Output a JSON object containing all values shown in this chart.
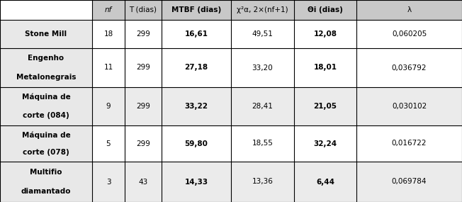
{
  "headers": [
    "nf",
    "T (dias)",
    "MTBF (dias)",
    "χ²α, 2×(nf+1)",
    "Θi (dias)",
    "λ"
  ],
  "rows": [
    {
      "label_lines": [
        "Stone Mill"
      ],
      "nf": "18",
      "T": "299",
      "MTBF": "16,61",
      "chi2": "49,51",
      "theta": "12,08",
      "lambda": "0,060205"
    },
    {
      "label_lines": [
        "Engenho",
        "Metalonegrais"
      ],
      "nf": "11",
      "T": "299",
      "MTBF": "27,18",
      "chi2": "33,20",
      "theta": "18,01",
      "lambda": "0,036792"
    },
    {
      "label_lines": [
        "Máquina de",
        "corte (084)"
      ],
      "nf": "9",
      "T": "299",
      "MTBF": "33,22",
      "chi2": "28,41",
      "theta": "21,05",
      "lambda": "0,030102"
    },
    {
      "label_lines": [
        "Máquina de",
        "corte (078)"
      ],
      "nf": "5",
      "T": "299",
      "MTBF": "59,80",
      "chi2": "18,55",
      "theta": "32,24",
      "lambda": "0,016722"
    },
    {
      "label_lines": [
        "Multifio",
        "diamantado"
      ],
      "nf": "3",
      "T": "43",
      "MTBF": "14,33",
      "chi2": "13,36",
      "theta": "6,44",
      "lambda": "0,069784"
    }
  ],
  "header_bg": "#c8c8c8",
  "label_bg": "#e8e8e8",
  "row_bg_white": "#ffffff",
  "row_bg_gray": "#ebebeb",
  "border_color": "#000000",
  "text_color": "#000000",
  "fig_width": 6.52,
  "fig_height": 2.85
}
